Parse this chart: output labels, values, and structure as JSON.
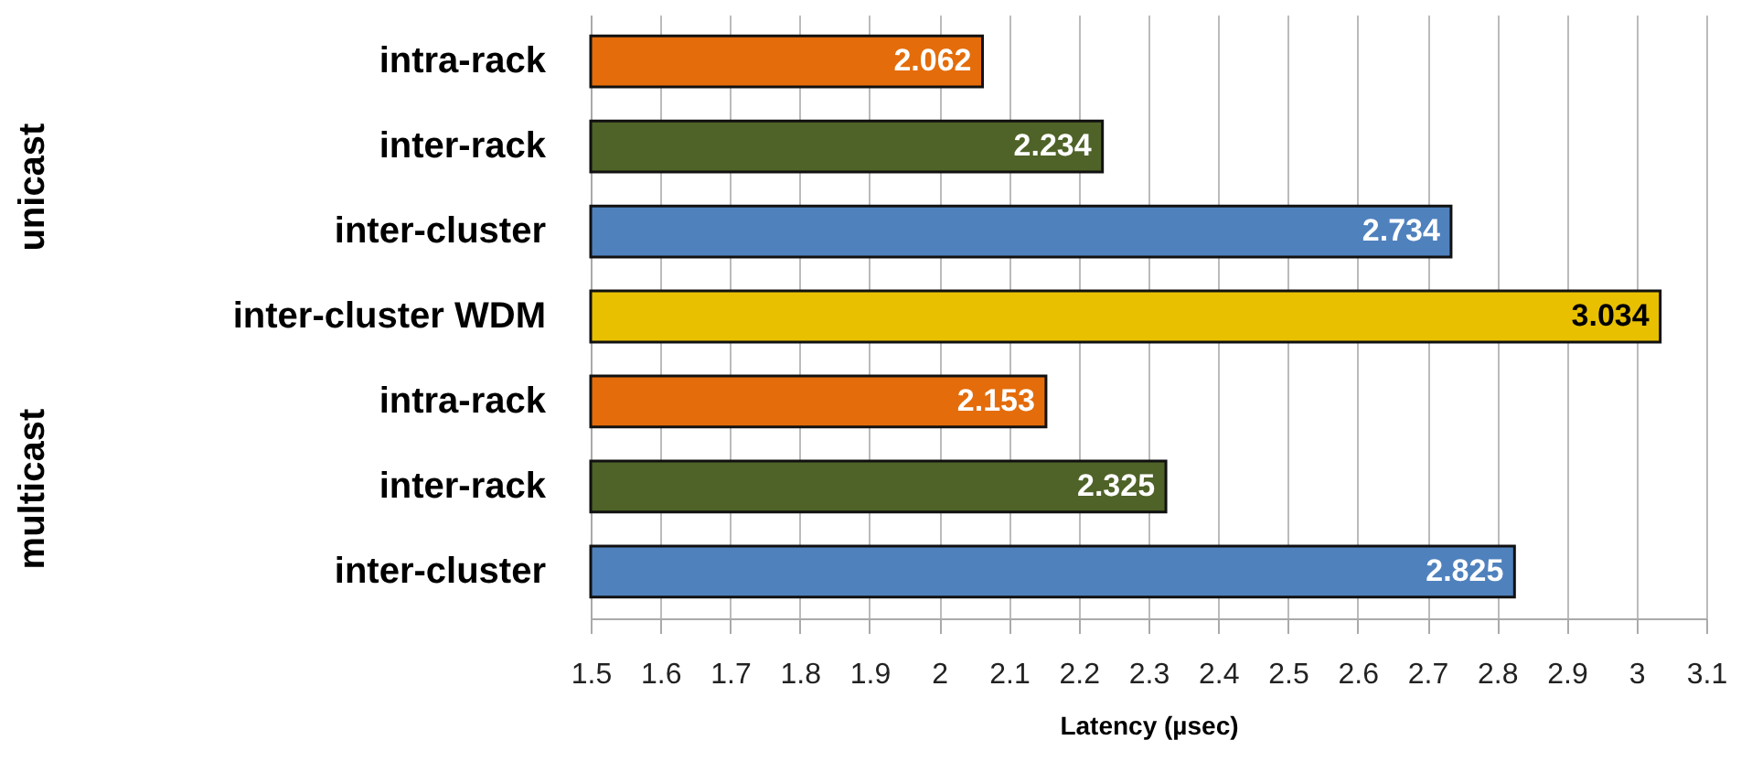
{
  "chart_data": {
    "type": "bar",
    "orientation": "horizontal",
    "xlabel": "Latency (µsec)",
    "categories": [
      "intra-rack",
      "inter-rack",
      "inter-cluster",
      "inter-cluster WDM",
      "intra-rack",
      "inter-rack",
      "inter-cluster"
    ],
    "values": [
      2.062,
      2.234,
      2.734,
      3.034,
      2.153,
      2.325,
      2.825
    ],
    "colors": [
      "#e46c0a",
      "#4f6228",
      "#4f81bd",
      "#e8c000",
      "#e46c0a",
      "#4f6228",
      "#4f81bd"
    ],
    "xlim": [
      1.5,
      3.1
    ],
    "xticks": [
      1.5,
      1.6,
      1.7,
      1.8,
      1.9,
      2,
      2.1,
      2.2,
      2.3,
      2.4,
      2.5,
      2.6,
      2.7,
      2.8,
      2.9,
      3,
      3.1
    ],
    "grid": "x",
    "data_labels": true,
    "annotations": [
      "unicast",
      "multicast"
    ]
  }
}
